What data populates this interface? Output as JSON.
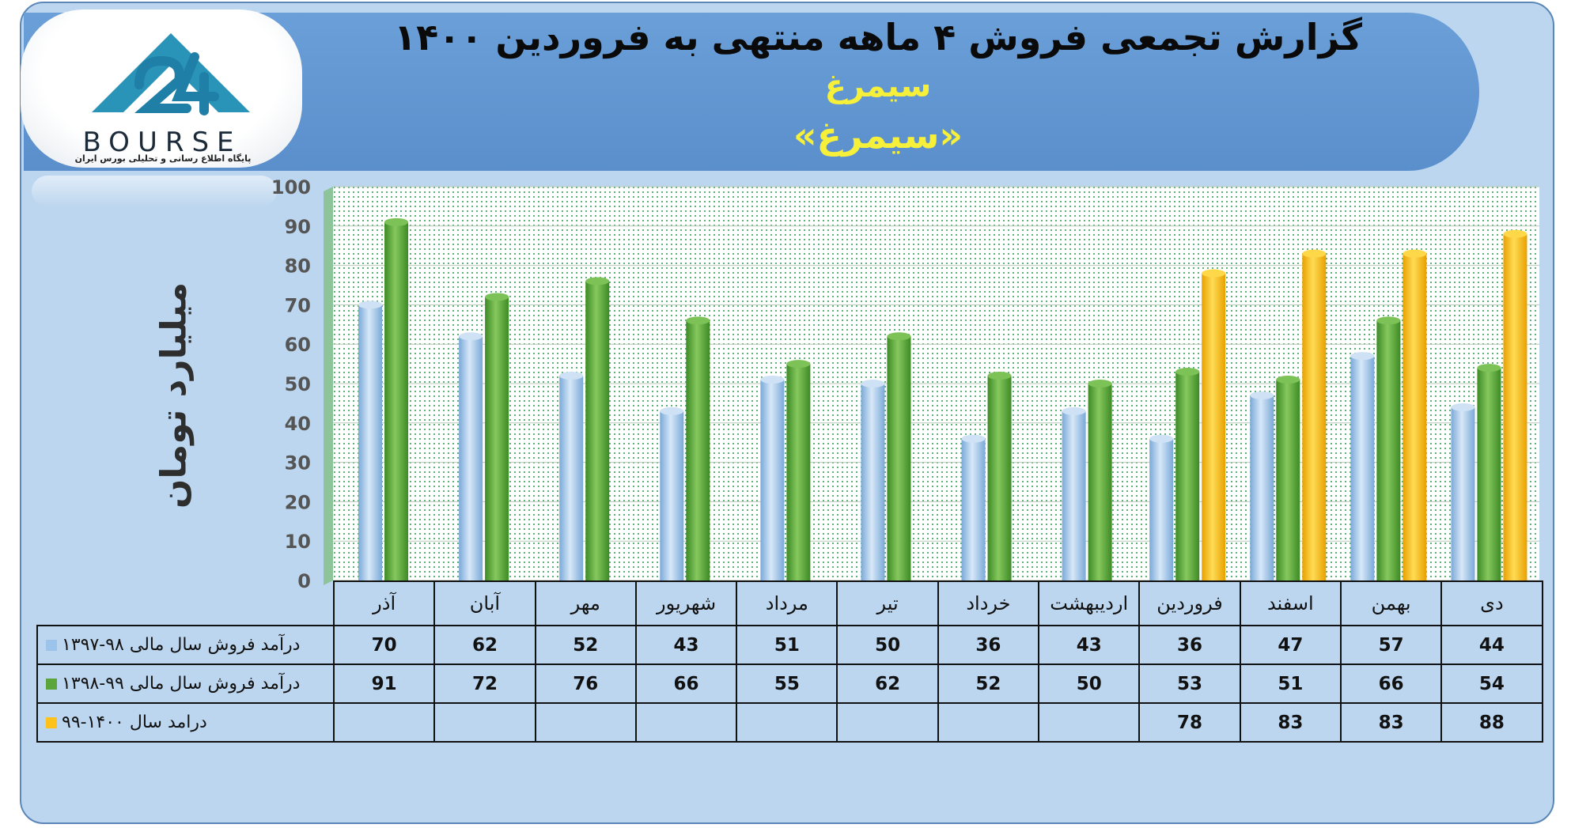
{
  "header": {
    "title": "گزارش تجمعی فروش ۴ ماهه منتهی به فروردین ۱۴۰۰",
    "subtitle": "سیمرغ",
    "subtitle_quoted": "«سیمرغ»"
  },
  "logo": {
    "brand": "BOURSE",
    "tagline": "پایگاه اطلاع رسانی و تحلیلی بورس ایران",
    "icon": "24-mountain-logo-icon"
  },
  "colors": {
    "series1": "#9cc3ea",
    "series2": "#5aa63a",
    "series3": "#ffc21a"
  },
  "chart_data": {
    "type": "bar",
    "title": "گزارش تجمعی فروش ۴ ماهه منتهی به فروردین ۱۴۰۰",
    "ylabel": "میلیارد تومان",
    "ylim": [
      0,
      100
    ],
    "yticks": [
      "0",
      "10",
      "20",
      "30",
      "40",
      "50",
      "60",
      "70",
      "80",
      "90",
      "100"
    ],
    "grid": true,
    "legend": "table-left",
    "categories": [
      "دی",
      "بهمن",
      "اسفند",
      "فروردین",
      "اردیبهشت",
      "خرداد",
      "تیر",
      "مرداد",
      "شهریور",
      "مهر",
      "آبان",
      "آذر"
    ],
    "series": [
      {
        "name": "درآمد فروش سال مالی ۹۸-۱۳۹۷",
        "values": [
          44,
          57,
          47,
          36,
          43,
          36,
          50,
          51,
          43,
          52,
          62,
          70
        ]
      },
      {
        "name": "درآمد فروش سال مالی ۹۹-۱۳۹۸",
        "values": [
          54,
          66,
          51,
          53,
          50,
          52,
          62,
          55,
          66,
          76,
          72,
          91
        ]
      },
      {
        "name": "درامد سال ۱۴۰۰-۹۹",
        "values": [
          88,
          83,
          83,
          78,
          null,
          null,
          null,
          null,
          null,
          null,
          null,
          null
        ]
      }
    ]
  }
}
